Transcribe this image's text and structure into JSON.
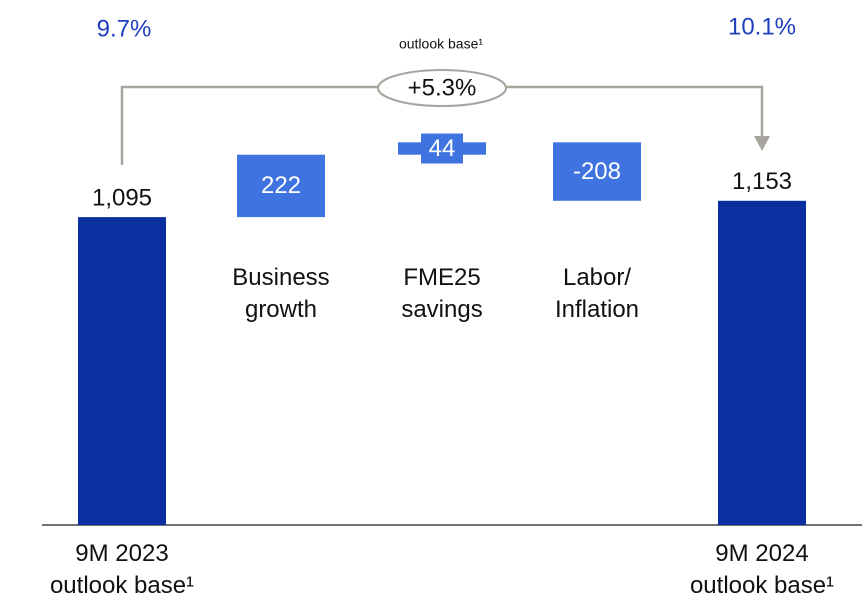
{
  "chart_data": {
    "type": "waterfall",
    "categories": [
      "9M 2023\noutlook base¹",
      "Business\ngrowth",
      "FME25\nsavings",
      "Labor/\nInflation",
      "9M 2024\noutlook base¹"
    ],
    "values": [
      1095,
      222,
      44,
      -208,
      1153
    ],
    "value_labels": [
      "1,095",
      "222",
      "44",
      "-208",
      "1,153"
    ],
    "measures": [
      "total",
      "relative",
      "relative",
      "relative",
      "total"
    ],
    "total_color": "#0a2f9f",
    "delta_color": "#3f74e0",
    "ylim": [
      0,
      1700
    ],
    "annotations": {
      "margin_start": "9.7%",
      "margin_end": "10.1%",
      "growth": "+5.3%",
      "growth_label": "outlook base¹"
    }
  }
}
